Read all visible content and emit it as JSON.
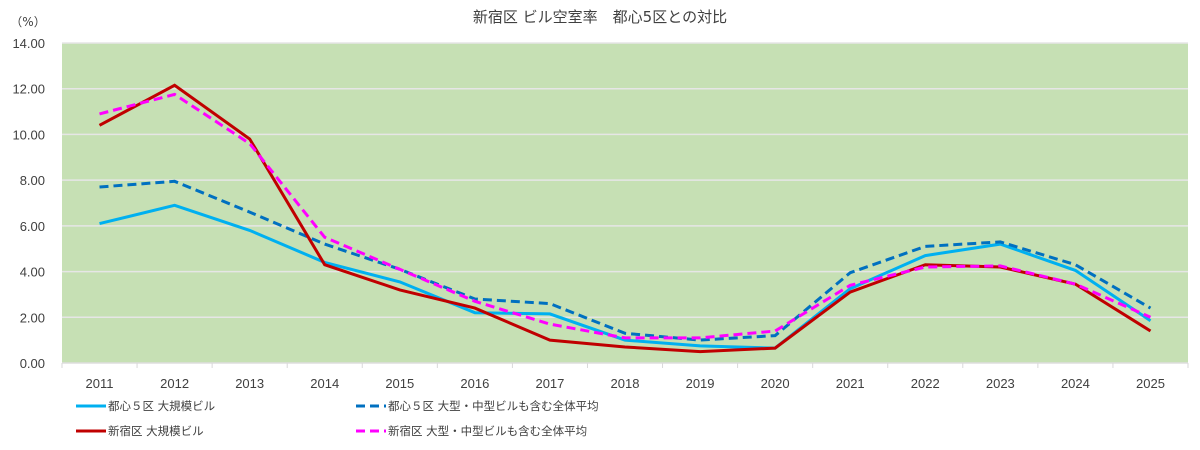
{
  "chart_data": {
    "type": "line",
    "title": "新宿区 ビル空室率　都心5区との対比",
    "unit_label": "（%）",
    "xlabel": "",
    "ylabel": "（%）",
    "ylim": [
      0,
      14
    ],
    "yticks": [
      0,
      2,
      4,
      6,
      8,
      10,
      12,
      14
    ],
    "ytick_labels": [
      "0.00",
      "2.00",
      "4.00",
      "6.00",
      "8.00",
      "10.00",
      "12.00",
      "14.00"
    ],
    "grid": true,
    "plot_background": "#c6e0b4",
    "legend_position": "bottom",
    "categories": [
      "2011",
      "2012",
      "2013",
      "2014",
      "2015",
      "2016",
      "2017",
      "2018",
      "2019",
      "2020",
      "2021",
      "2022",
      "2023",
      "2024",
      "2025"
    ],
    "series": [
      {
        "name": "都心５区 大規模ビル",
        "color": "#00b0f0",
        "dash": "solid",
        "values": [
          6.1,
          6.9,
          5.8,
          4.4,
          3.55,
          2.2,
          2.15,
          1.0,
          0.75,
          0.65,
          3.25,
          4.7,
          5.2,
          4.05,
          1.85
        ]
      },
      {
        "name": "都心５区 大型・中型ビルも含む全体平均",
        "color": "#0070c0",
        "dash": "dashed",
        "values": [
          7.7,
          7.95,
          6.6,
          5.2,
          4.1,
          2.8,
          2.6,
          1.3,
          1.0,
          1.2,
          3.95,
          5.1,
          5.3,
          4.3,
          2.4
        ]
      },
      {
        "name": "新宿区 大規模ビル",
        "color": "#c00000",
        "dash": "solid",
        "values": [
          10.4,
          12.15,
          9.8,
          4.3,
          3.2,
          2.4,
          1.0,
          0.7,
          0.5,
          0.65,
          3.1,
          4.3,
          4.2,
          3.45,
          1.4
        ]
      },
      {
        "name": "新宿区 大型・中型ビルも含む全体平均",
        "color": "#ff00ff",
        "dash": "dashed",
        "values": [
          10.9,
          11.75,
          9.6,
          5.5,
          4.1,
          2.7,
          1.7,
          1.1,
          1.1,
          1.4,
          3.4,
          4.2,
          4.25,
          3.45,
          2.0
        ]
      }
    ]
  }
}
